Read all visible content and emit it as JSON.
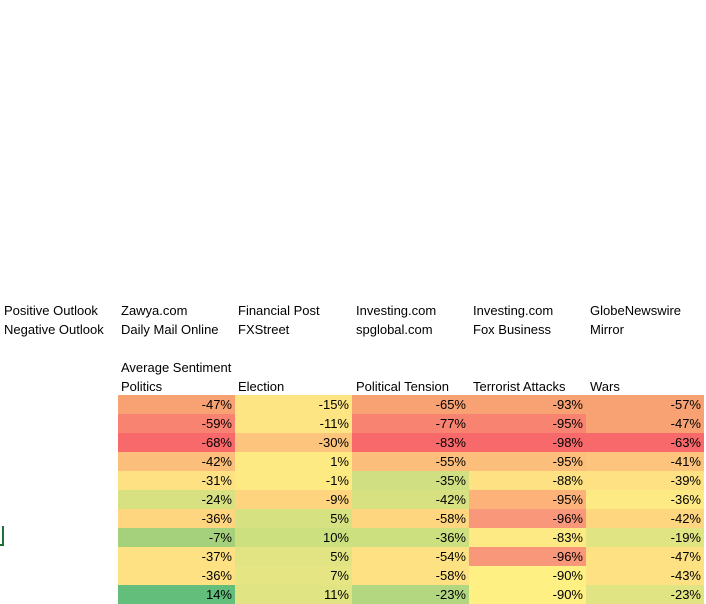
{
  "legend": {
    "positive_label": "Positive Outlook",
    "negative_label": "Negative Outlook",
    "positive_sources": [
      "Zawya.com",
      "Financial Post",
      "Investing.com",
      "Investing.com",
      "GlobeNewswire"
    ],
    "negative_sources": [
      "Daily Mail Online",
      "FXStreet",
      "spglobal.com",
      "Fox Business",
      "Mirror"
    ]
  },
  "table": {
    "caption": "Average Sentiment",
    "columns": [
      "Politics",
      "Election",
      "Political Tension",
      "Terrorist Attacks",
      "Wars"
    ],
    "rows": [
      [
        "-47%",
        "-15%",
        "-65%",
        "-93%",
        "-57%"
      ],
      [
        "-59%",
        "-11%",
        "-77%",
        "-95%",
        "-47%"
      ],
      [
        "-68%",
        "-30%",
        "-83%",
        "-98%",
        "-63%"
      ],
      [
        "-42%",
        "1%",
        "-55%",
        "-95%",
        "-41%"
      ],
      [
        "-31%",
        "-1%",
        "-35%",
        "-88%",
        "-39%"
      ],
      [
        "-24%",
        "-9%",
        "-42%",
        "-95%",
        "-36%"
      ],
      [
        "-36%",
        "5%",
        "-58%",
        "-96%",
        "-42%"
      ],
      [
        "-7%",
        "10%",
        "-36%",
        "-83%",
        "-19%"
      ],
      [
        "-37%",
        "5%",
        "-54%",
        "-96%",
        "-47%"
      ],
      [
        "-36%",
        "7%",
        "-58%",
        "-90%",
        "-43%"
      ],
      [
        "14%",
        "11%",
        "-23%",
        "-90%",
        "-23%"
      ]
    ],
    "colors": [
      [
        "#f8a273",
        "#fde583",
        "#f8a273",
        "#f8a273",
        "#f8a273"
      ],
      [
        "#f88371",
        "#fde583",
        "#f88371",
        "#f88371",
        "#f8a273"
      ],
      [
        "#f8696b",
        "#fcc47c",
        "#f8696b",
        "#f8696b",
        "#f8696b"
      ],
      [
        "#fbbf7b",
        "#feea83",
        "#fbbf7b",
        "#fbbf7b",
        "#fcc47c"
      ],
      [
        "#fde182",
        "#feea83",
        "#cfdf82",
        "#fde182",
        "#fde182"
      ],
      [
        "#d7e181",
        "#fed47f",
        "#d7e181",
        "#fcb279",
        "#fdea84"
      ],
      [
        "#fed680",
        "#d6e181",
        "#fed680",
        "#f9977a",
        "#fed680"
      ],
      [
        "#a6d17c",
        "#cce07f",
        "#cce07f",
        "#fdea84",
        "#e0e482"
      ],
      [
        "#fde182",
        "#e2e483",
        "#fde182",
        "#f9977a",
        "#fde182"
      ],
      [
        "#fde182",
        "#e5e583",
        "#fde182",
        "#fef083",
        "#fde182"
      ],
      [
        "#63be7b",
        "#e1e482",
        "#b3d780",
        "#fef083",
        "#e0e482"
      ]
    ]
  }
}
